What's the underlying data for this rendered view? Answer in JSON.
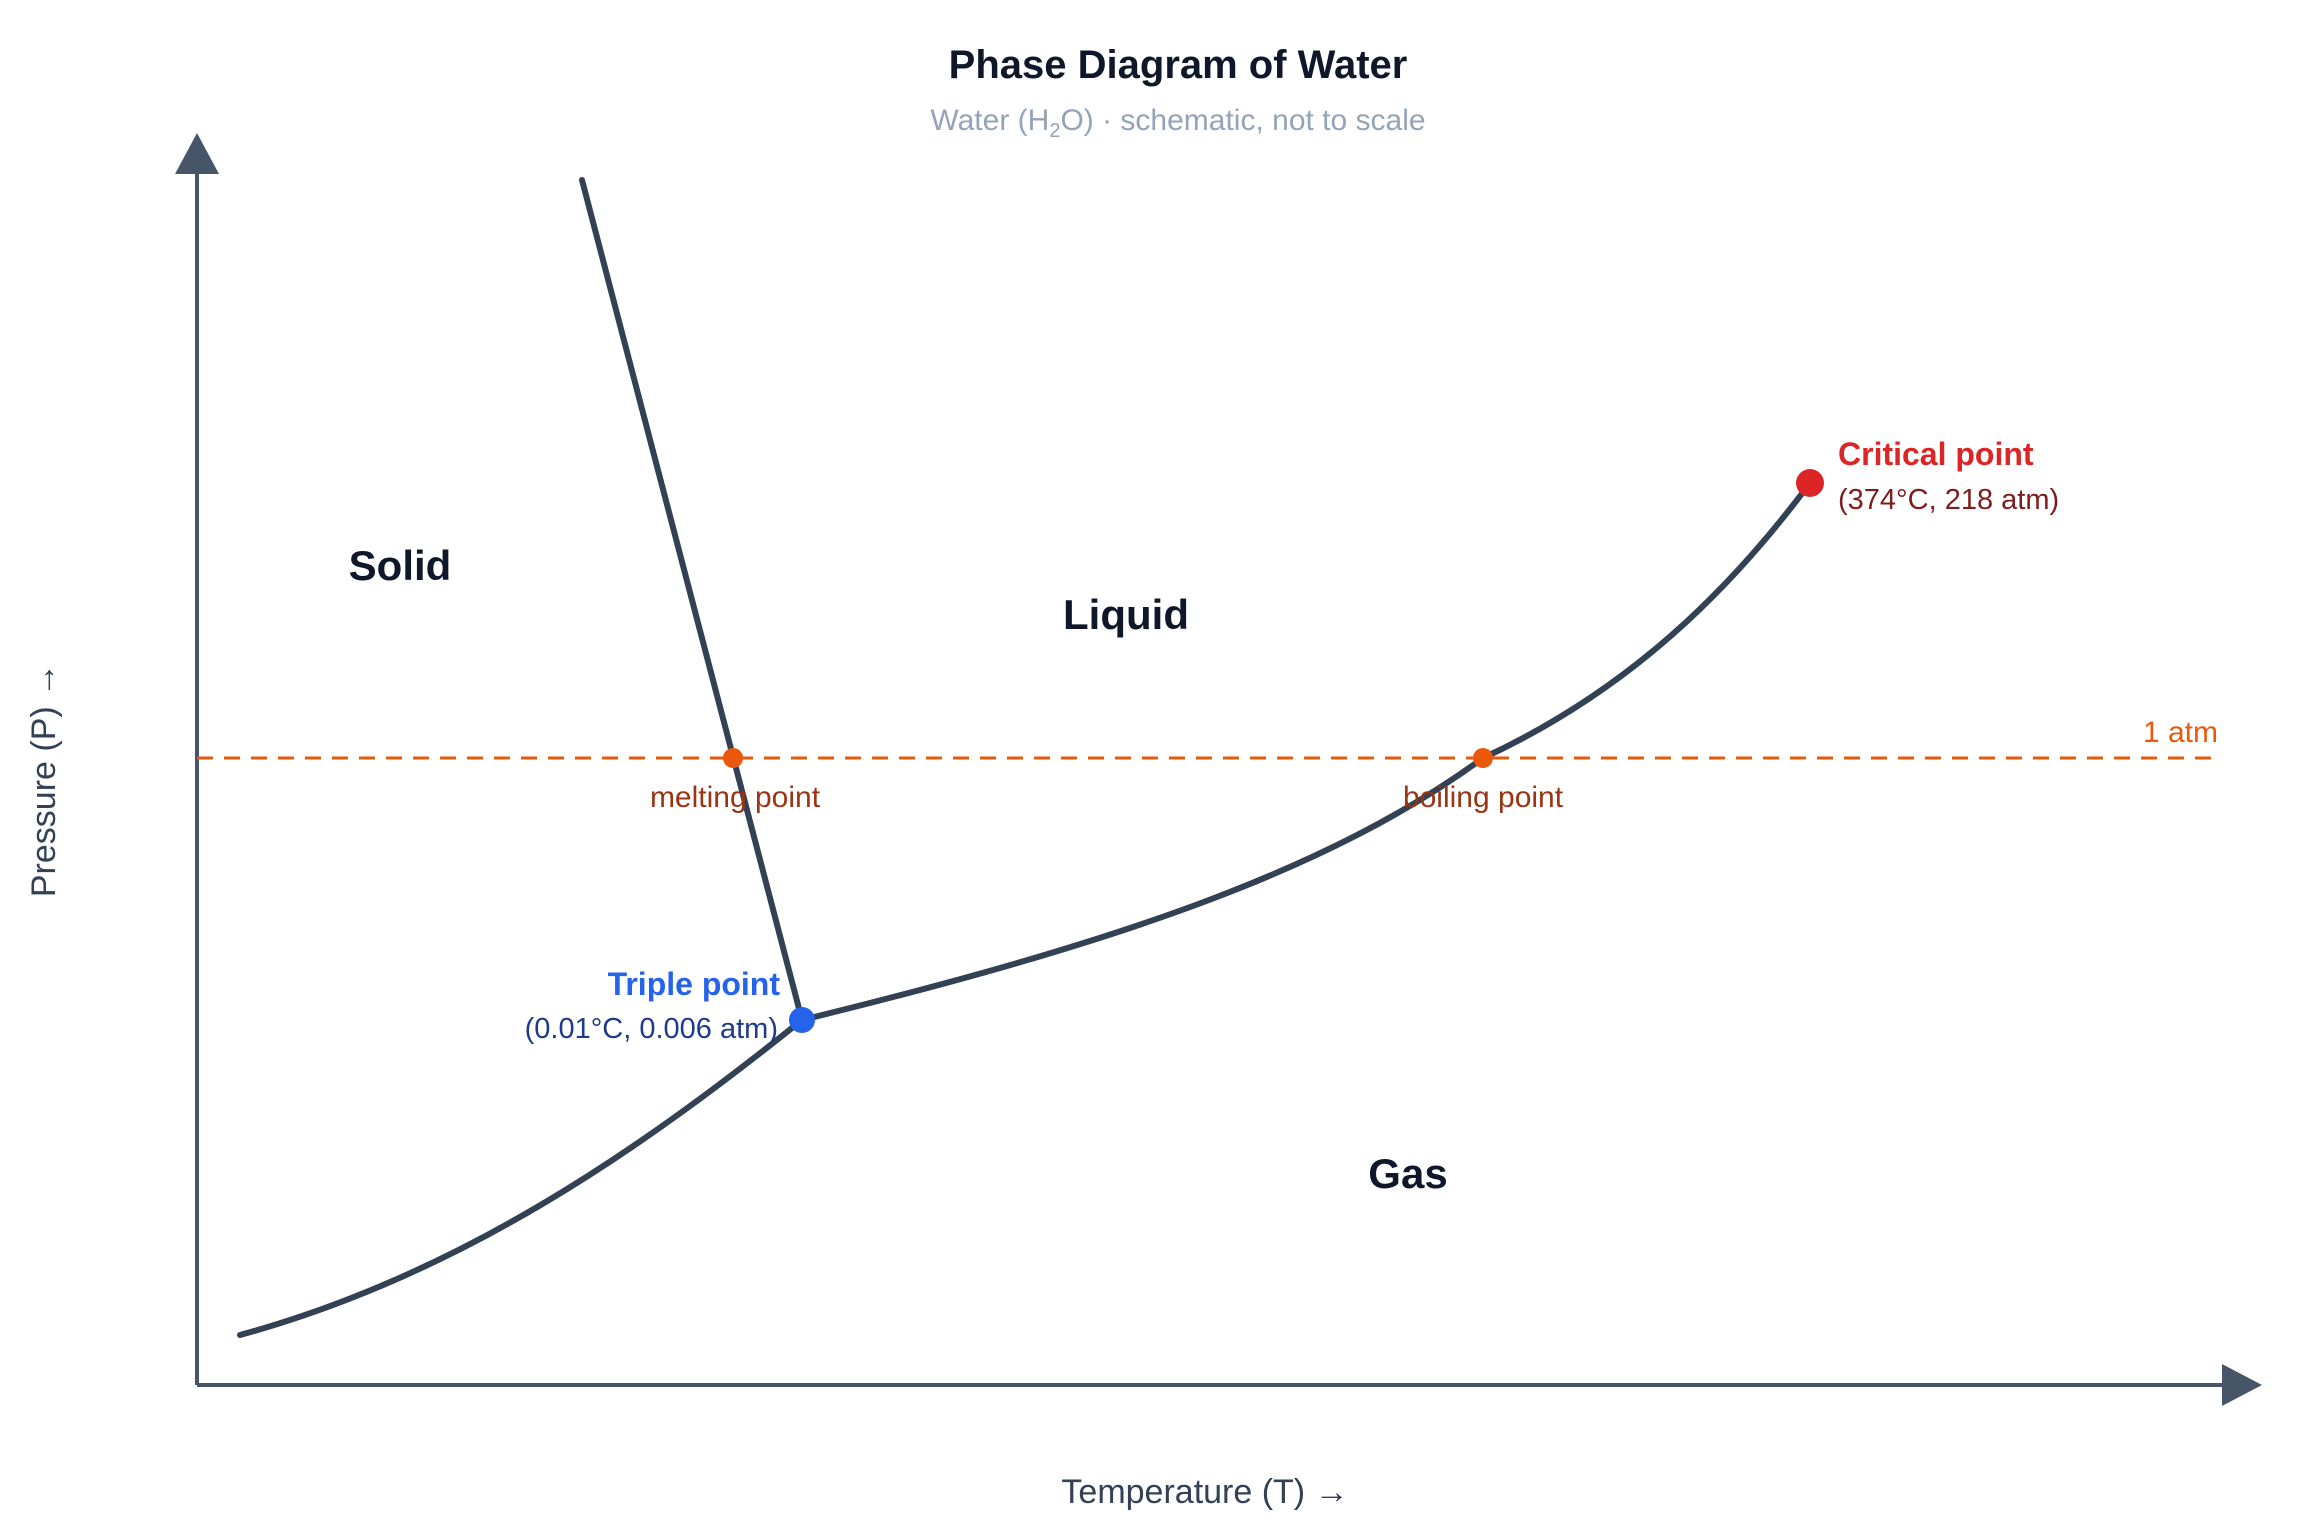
{
  "title": "Phase Diagram of Water",
  "subtitle": {
    "prefix": "Water (H",
    "subscript": "2",
    "suffix": "O) · schematic, not to scale"
  },
  "axes": {
    "x_label": "Temperature (T) →",
    "y_label": "Pressure (P) →"
  },
  "regions": {
    "solid": "Solid",
    "liquid": "Liquid",
    "gas": "Gas"
  },
  "triple_point": {
    "label": "Triple point",
    "coords": "(0.01°C, 0.006 atm)",
    "color": "#2563eb"
  },
  "critical_point": {
    "label": "Critical point",
    "coords": "(374°C, 218 atm)",
    "color": "#dc2626"
  },
  "reference": {
    "atm_label": "1 atm",
    "melting_label": "melting point",
    "boiling_label": "boiling point",
    "color": "#ea580c"
  },
  "colors": {
    "curve": "#334155",
    "axis": "#475569"
  }
}
